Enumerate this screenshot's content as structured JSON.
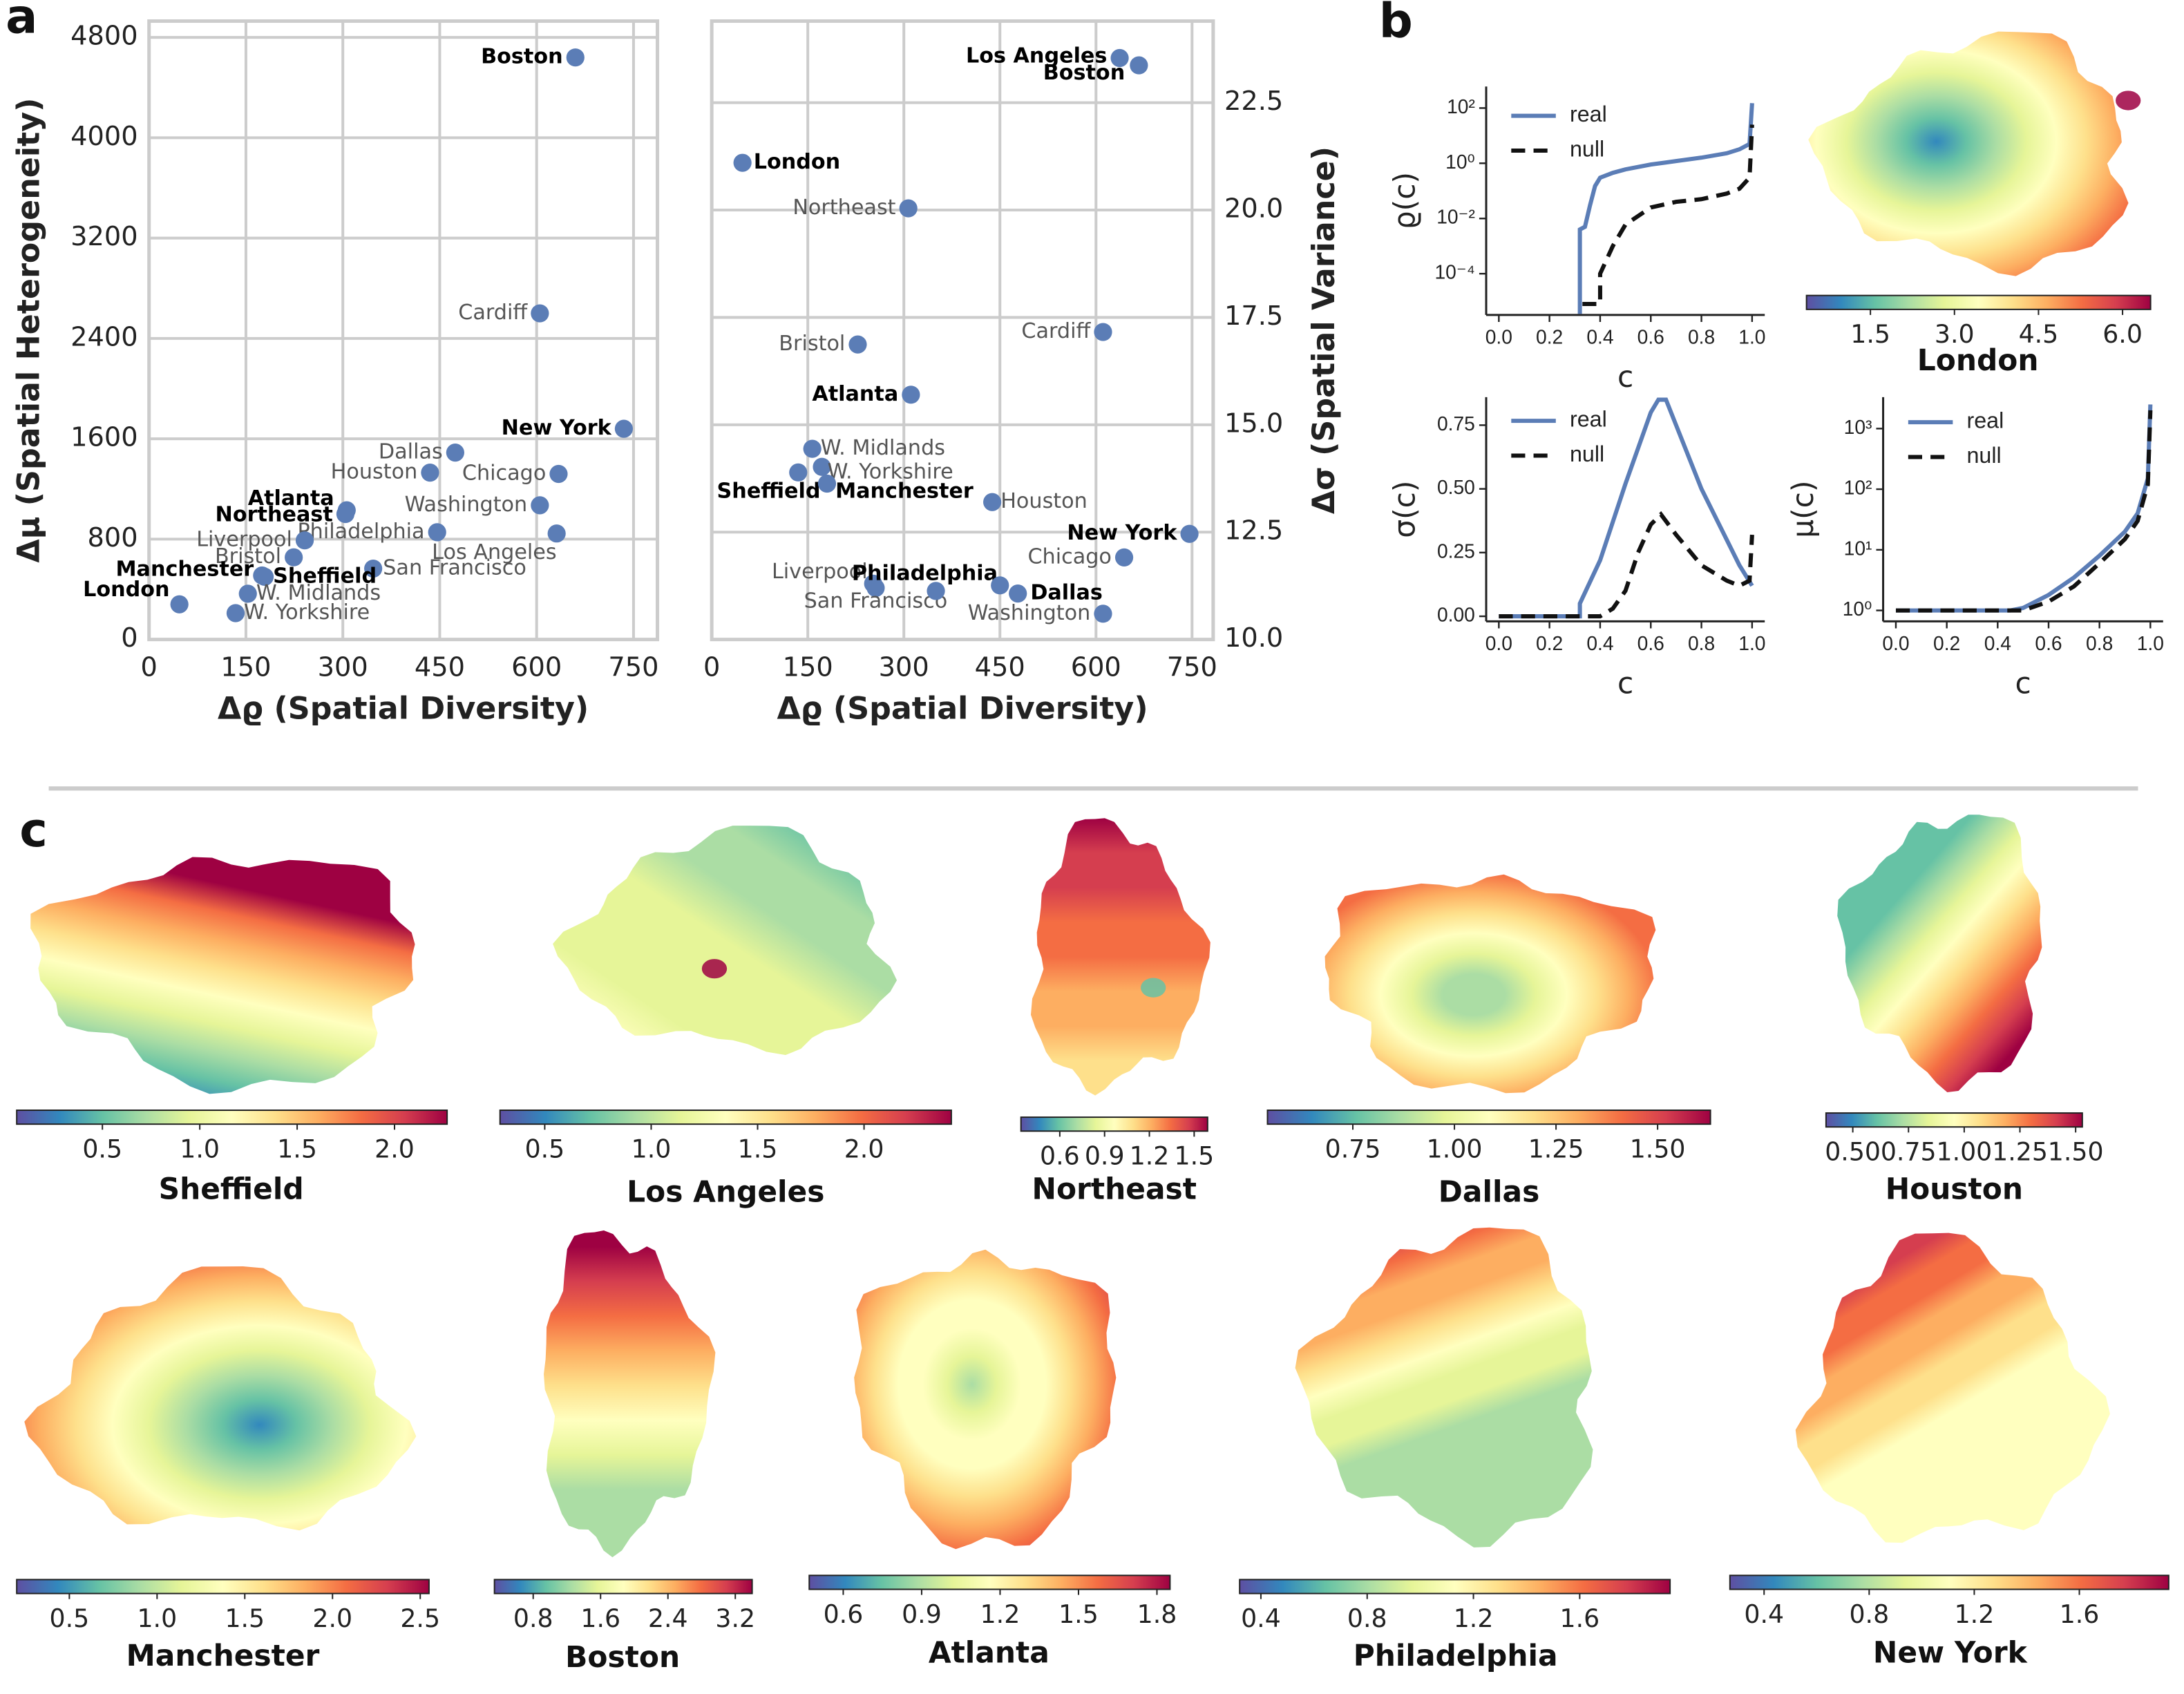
{
  "panel_labels": [
    "a",
    "b",
    "c"
  ],
  "chart_data": [
    {
      "type": "scatter",
      "x_label": "Δϱ (Spatial Diversity)",
      "y_label": "Δμ (Spatial Heterogeneity)",
      "xlim": [
        0,
        787
      ],
      "ylim": [
        0,
        4930
      ],
      "xticks": [
        0,
        150,
        300,
        450,
        600,
        750
      ],
      "yticks": [
        0,
        800,
        1600,
        2400,
        3200,
        4000,
        4800
      ],
      "grid": true,
      "series": [
        {
          "color": "#5b7db6",
          "x": [
            660,
            605,
            735,
            474,
            435,
            634,
            306,
            304,
            605,
            446,
            631,
            241,
            224,
            347,
            175,
            179,
            153,
            47,
            134
          ],
          "values": [
            4640,
            2600,
            1680,
            1490,
            1330,
            1320,
            1030,
            1000,
            1070,
            855,
            845,
            790,
            655,
            565,
            510,
            500,
            365,
            280,
            210
          ],
          "labels": [
            "Boston",
            "Cardiff",
            "New York",
            "Dallas",
            "Houston",
            "Chicago",
            "Atlanta",
            "Northeast",
            "Washington",
            "Philadelphia",
            "Los Angeles",
            "Liverpool",
            "Bristol",
            "San Francisco",
            "Manchester",
            "Sheffield",
            "W. Midlands",
            "London",
            "W. Yorkshire"
          ],
          "bold": [
            true,
            false,
            true,
            false,
            false,
            false,
            true,
            true,
            false,
            false,
            false,
            false,
            false,
            false,
            true,
            true,
            false,
            true,
            false
          ]
        }
      ]
    },
    {
      "type": "scatter",
      "x_label": "Δϱ (Spatial Diversity)",
      "y2_label": "Δσ (Spatial Variance)",
      "xlim": [
        0,
        783
      ],
      "y2lim": [
        10,
        24.4
      ],
      "xticks": [
        0,
        150,
        300,
        450,
        600,
        750
      ],
      "y2ticks": [
        {
          "value": 10,
          "label": "10.0"
        },
        12.5,
        {
          "value": 15,
          "label": "15.0"
        },
        17.5,
        {
          "value": 20,
          "label": "20.0"
        },
        22.5
      ],
      "grid": true,
      "series": [
        {
          "color": "#5b7db6",
          "axis": "y2",
          "x": [
            637,
            667,
            48,
            307,
            228,
            611,
            311,
            157,
            172,
            135,
            180,
            438,
            746,
            644,
            252,
            256,
            350,
            450,
            478,
            611
          ],
          "values": [
            23.54,
            23.37,
            21.1,
            20.04,
            16.87,
            17.16,
            15.7,
            14.44,
            14.02,
            13.89,
            13.63,
            13.2,
            12.46,
            11.91,
            11.3,
            11.2,
            11.13,
            11.26,
            11.07,
            10.6
          ],
          "labels": [
            "Los Angeles",
            "Boston",
            "London",
            "Northeast",
            "Bristol",
            "Cardiff",
            "Atlanta",
            "W. Midlands",
            "W. Yorkshire",
            "Sheffield",
            "Manchester",
            "Houston",
            "New York",
            "Chicago",
            "Liverpool",
            "San Francisco",
            "Philadelphia",
            null,
            "Dallas",
            "Washington"
          ],
          "bold": [
            true,
            true,
            true,
            false,
            false,
            false,
            true,
            false,
            false,
            true,
            true,
            false,
            true,
            false,
            false,
            false,
            true,
            false,
            true,
            false
          ]
        }
      ]
    },
    {
      "type": "line",
      "x_label": "c",
      "y_label": "ϱ(c)",
      "log_y": true,
      "xlim": [
        -0.05,
        1.05
      ],
      "ylim": [
        3.2e-06,
        600
      ],
      "xticks": [
        {
          "value": 0,
          "label": "0.0"
        },
        0.2,
        0.4,
        0.6,
        0.8,
        {
          "value": 1,
          "label": "1.0"
        }
      ],
      "yticks": [
        {
          "value": 0.0001,
          "label": "10⁻⁴"
        },
        {
          "value": 0.01,
          "label": "10⁻²"
        },
        {
          "value": 1,
          "label": "10⁰"
        },
        {
          "value": 100,
          "label": "10²"
        }
      ],
      "series": [
        {
          "name": "real",
          "color": "#5b7db6",
          "linestyle": "solid",
          "x": [
            0.32,
            0.32,
            0.34,
            0.36,
            0.38,
            0.4,
            0.45,
            0.5,
            0.6,
            0.7,
            0.8,
            0.9,
            0.95,
            0.99,
            1.0
          ],
          "values": [
            3.5e-06,
            0.004,
            0.005,
            0.03,
            0.15,
            0.3,
            0.45,
            0.6,
            0.9,
            1.2,
            1.6,
            2.3,
            3.2,
            5,
            150
          ]
        },
        {
          "name": "null",
          "color": "#111111",
          "linestyle": "dashed",
          "x": [
            0.33,
            0.4,
            0.4,
            0.45,
            0.5,
            0.6,
            0.7,
            0.8,
            0.9,
            0.95,
            0.99,
            1.0
          ],
          "values": [
            8e-06,
            8e-06,
            0.0001,
            0.001,
            0.006,
            0.025,
            0.04,
            0.05,
            0.08,
            0.12,
            0.3,
            25
          ]
        }
      ]
    },
    {
      "type": "map",
      "title": "London",
      "colormap": "Spectral_r",
      "clim": [
        0.36,
        6.5
      ],
      "cticks": [
        1.5,
        {
          "value": 3,
          "label": "3.0"
        },
        4.5,
        {
          "value": 6,
          "label": "6.0"
        }
      ]
    },
    {
      "type": "line",
      "x_label": "c",
      "y_label": "σ(c)",
      "log_y": false,
      "xlim": [
        -0.05,
        1.05
      ],
      "ylim": [
        -0.02,
        0.86
      ],
      "xticks": [
        {
          "value": 0,
          "label": "0.0"
        },
        0.2,
        0.4,
        0.6,
        0.8,
        {
          "value": 1,
          "label": "1.0"
        }
      ],
      "yticks": [
        {
          "value": 0,
          "label": "0.00"
        },
        0.25,
        {
          "value": 0.5,
          "label": "0.50"
        },
        0.75
      ],
      "series": [
        {
          "name": "real",
          "color": "#5b7db6",
          "linestyle": "solid",
          "x": [
            0.0,
            0.3,
            0.32,
            0.32,
            0.4,
            0.5,
            0.6,
            0.63,
            0.66,
            0.7,
            0.8,
            0.9,
            0.95,
            1.0
          ],
          "values": [
            0,
            0,
            0,
            0.05,
            0.22,
            0.52,
            0.8,
            0.85,
            0.85,
            0.75,
            0.5,
            0.3,
            0.2,
            0.12
          ]
        },
        {
          "name": "null",
          "color": "#111111",
          "linestyle": "dashed",
          "x": [
            0.0,
            0.4,
            0.45,
            0.5,
            0.55,
            0.6,
            0.64,
            0.7,
            0.8,
            0.9,
            0.95,
            0.99,
            1.0
          ],
          "values": [
            0,
            0,
            0.03,
            0.1,
            0.25,
            0.36,
            0.4,
            0.32,
            0.2,
            0.14,
            0.12,
            0.14,
            0.32
          ]
        }
      ]
    },
    {
      "type": "line",
      "x_label": "c",
      "y_label": "μ(c)",
      "log_y": true,
      "xlim": [
        -0.05,
        1.05
      ],
      "ylim": [
        0.66,
        3300
      ],
      "xticks": [
        {
          "value": 0,
          "label": "0.0"
        },
        0.2,
        0.4,
        0.6,
        0.8,
        {
          "value": 1,
          "label": "1.0"
        }
      ],
      "yticks": [
        {
          "value": 1,
          "label": "10⁰"
        },
        {
          "value": 10,
          "label": "10¹"
        },
        {
          "value": 100,
          "label": "10²"
        },
        {
          "value": 1000,
          "label": "10³"
        }
      ],
      "series": [
        {
          "name": "real",
          "color": "#5b7db6",
          "linestyle": "solid",
          "x": [
            0.0,
            0.45,
            0.5,
            0.6,
            0.7,
            0.8,
            0.9,
            0.95,
            0.99,
            1.0
          ],
          "values": [
            1,
            1,
            1.1,
            1.8,
            3.5,
            8,
            20,
            40,
            150,
            2500
          ]
        },
        {
          "name": "null",
          "color": "#111111",
          "linestyle": "dashed",
          "x": [
            0.0,
            0.5,
            0.6,
            0.7,
            0.8,
            0.9,
            0.95,
            0.99,
            1.0
          ],
          "values": [
            1,
            1,
            1.4,
            2.5,
            6,
            15,
            30,
            120,
            2000
          ]
        }
      ]
    },
    {
      "type": "map",
      "title": "Sheffield",
      "colormap": "Spectral_r",
      "clim": [
        0.06,
        2.27
      ],
      "cticks": [
        0.5,
        {
          "value": 1,
          "label": "1.0"
        },
        1.5,
        {
          "value": 2,
          "label": "2.0"
        }
      ]
    },
    {
      "type": "map",
      "title": "Los Angeles",
      "colormap": "Spectral_r",
      "clim": [
        0.29,
        2.41
      ],
      "cticks": [
        0.5,
        {
          "value": 1,
          "label": "1.0"
        },
        1.5,
        {
          "value": 2,
          "label": "2.0"
        }
      ]
    },
    {
      "type": "map",
      "title": "Northeast",
      "colormap": "Spectral_r",
      "clim": [
        0.34,
        1.59
      ],
      "cticks": [
        0.6,
        0.9,
        1.2,
        1.5
      ]
    },
    {
      "type": "map",
      "title": "Dallas",
      "colormap": "Spectral_r",
      "clim": [
        0.54,
        1.63
      ],
      "cticks": [
        0.75,
        {
          "value": 1,
          "label": "1.00"
        },
        1.25,
        {
          "value": 1.5,
          "label": "1.50"
        }
      ]
    },
    {
      "type": "map",
      "title": "Houston",
      "colormap": "Spectral_r",
      "clim": [
        0.38,
        1.53
      ],
      "cticks": [
        {
          "value": 0.5,
          "label": "0.50"
        },
        0.75,
        {
          "value": 1,
          "label": "1.00"
        },
        1.25,
        {
          "value": 1.5,
          "label": "1.50"
        }
      ]
    },
    {
      "type": "map",
      "title": "Manchester",
      "colormap": "Spectral_r",
      "clim": [
        0.2,
        2.55
      ],
      "cticks": [
        0.5,
        {
          "value": 1,
          "label": "1.0"
        },
        1.5,
        {
          "value": 2,
          "label": "2.0"
        },
        2.5
      ]
    },
    {
      "type": "map",
      "title": "Boston",
      "colormap": "Spectral_r",
      "clim": [
        0.34,
        3.4
      ],
      "cticks": [
        0.8,
        1.6,
        2.4,
        3.2
      ]
    },
    {
      "type": "map",
      "title": "Atlanta",
      "colormap": "Spectral_r",
      "clim": [
        0.47,
        1.85
      ],
      "cticks": [
        0.6,
        0.9,
        1.2,
        1.5,
        1.8
      ]
    },
    {
      "type": "map",
      "title": "Philadelphia",
      "colormap": "Spectral_r",
      "clim": [
        0.32,
        1.94
      ],
      "cticks": [
        0.4,
        0.8,
        1.2,
        1.6
      ]
    },
    {
      "type": "map",
      "title": "New York",
      "colormap": "Spectral_r",
      "clim": [
        0.27,
        1.94
      ],
      "cticks": [
        0.4,
        0.8,
        1.2,
        1.6
      ]
    }
  ]
}
